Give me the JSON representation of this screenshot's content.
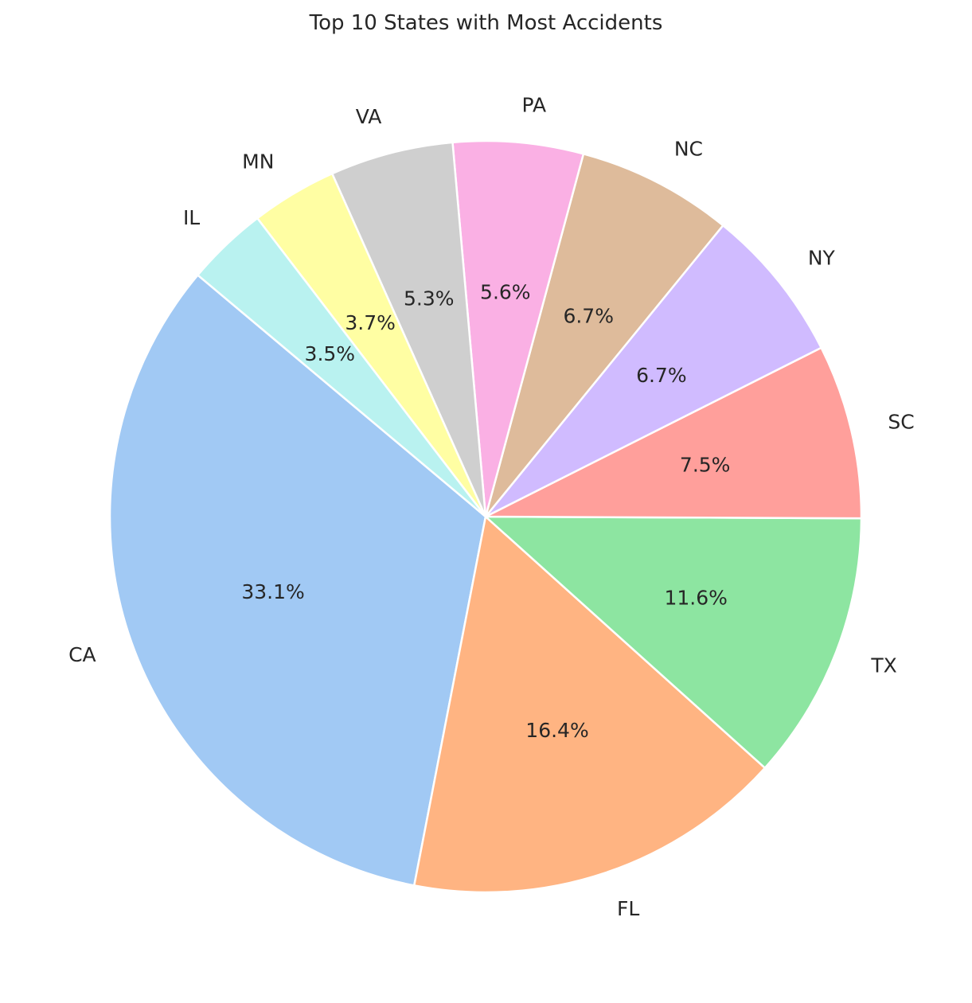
{
  "chart_data": {
    "type": "pie",
    "title": "Top 10 States with Most Accidents",
    "labels": [
      "CA",
      "FL",
      "TX",
      "SC",
      "NY",
      "NC",
      "PA",
      "VA",
      "MN",
      "IL"
    ],
    "values": [
      33.1,
      16.4,
      11.6,
      7.5,
      6.7,
      6.7,
      5.6,
      5.3,
      3.7,
      3.5
    ],
    "pct_labels": [
      "33.1%",
      "16.4%",
      "11.6%",
      "7.5%",
      "6.7%",
      "6.7%",
      "5.6%",
      "5.3%",
      "3.7%",
      "3.5%"
    ],
    "colors": [
      "#a1c9f4",
      "#ffb482",
      "#8de5a1",
      "#ff9f9b",
      "#d0bbff",
      "#debb9b",
      "#fab0e4",
      "#cfcfcf",
      "#fffea3",
      "#b9f2f0"
    ],
    "start_angle_deg": 140,
    "direction": "counterclockwise",
    "legend": "none"
  }
}
